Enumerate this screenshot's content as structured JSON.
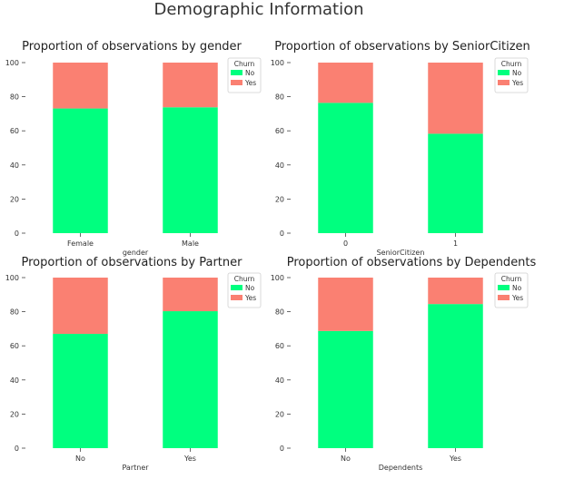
{
  "suptitle": "Demographic Information",
  "colors": {
    "No": "#00ff7f",
    "Yes": "#fa8072"
  },
  "chart_data": [
    {
      "type": "bar",
      "stacked": true,
      "title": "Proportion of observations by gender",
      "xlabel": "gender",
      "ylabel": "",
      "ylim": [
        0,
        100
      ],
      "yticks": [
        0,
        20,
        40,
        60,
        80,
        100
      ],
      "categories": [
        "Female",
        "Male"
      ],
      "series": [
        {
          "name": "No",
          "values": [
            73.1,
            73.8
          ]
        },
        {
          "name": "Yes",
          "values": [
            26.9,
            26.2
          ]
        }
      ],
      "legend": {
        "title": "Churn",
        "position": "top-right"
      },
      "grid": false
    },
    {
      "type": "bar",
      "stacked": true,
      "title": "Proportion of observations by SeniorCitizen",
      "xlabel": "SeniorCitizen",
      "ylabel": "",
      "ylim": [
        0,
        100
      ],
      "yticks": [
        0,
        20,
        40,
        60,
        80,
        100
      ],
      "categories": [
        "0",
        "1"
      ],
      "series": [
        {
          "name": "No",
          "values": [
            76.4,
            58.3
          ]
        },
        {
          "name": "Yes",
          "values": [
            23.6,
            41.7
          ]
        }
      ],
      "legend": {
        "title": "Churn",
        "position": "top-right"
      },
      "grid": false
    },
    {
      "type": "bar",
      "stacked": true,
      "title": "Proportion of observations by Partner",
      "xlabel": "Partner",
      "ylabel": "",
      "ylim": [
        0,
        100
      ],
      "yticks": [
        0,
        20,
        40,
        60,
        80,
        100
      ],
      "categories": [
        "No",
        "Yes"
      ],
      "series": [
        {
          "name": "No",
          "values": [
            67.0,
            80.3
          ]
        },
        {
          "name": "Yes",
          "values": [
            33.0,
            19.7
          ]
        }
      ],
      "legend": {
        "title": "Churn",
        "position": "top-right"
      },
      "grid": false
    },
    {
      "type": "bar",
      "stacked": true,
      "title": "Proportion of observations by Dependents",
      "xlabel": "Dependents",
      "ylabel": "",
      "ylim": [
        0,
        100
      ],
      "yticks": [
        0,
        20,
        40,
        60,
        80,
        100
      ],
      "categories": [
        "No",
        "Yes"
      ],
      "series": [
        {
          "name": "No",
          "values": [
            68.7,
            84.5
          ]
        },
        {
          "name": "Yes",
          "values": [
            31.3,
            15.5
          ]
        }
      ],
      "legend": {
        "title": "Churn",
        "position": "top-right"
      },
      "grid": false
    }
  ]
}
